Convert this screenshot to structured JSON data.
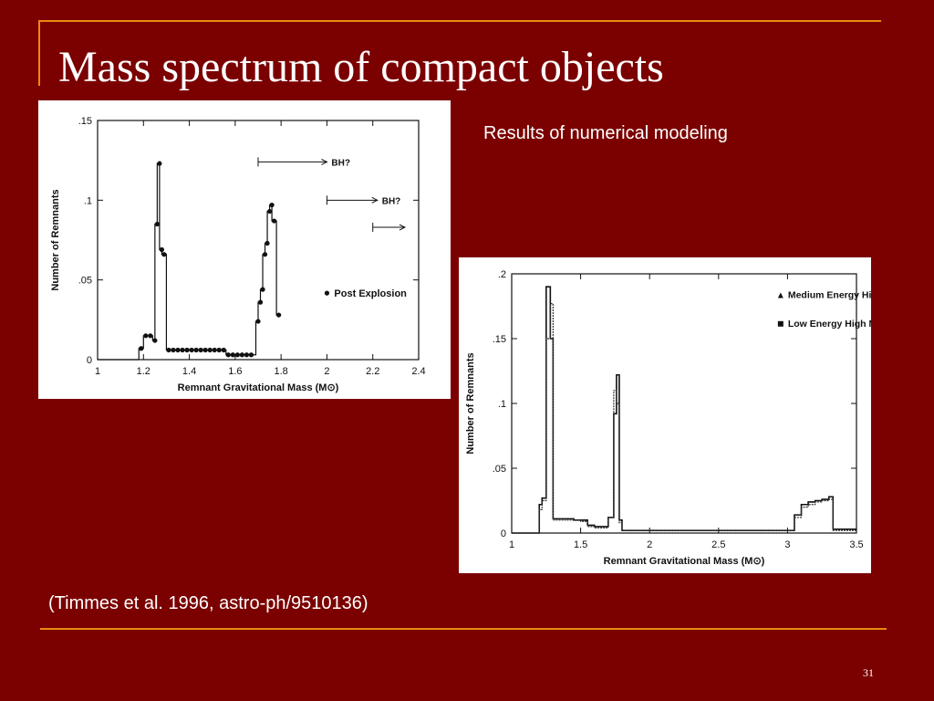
{
  "slide": {
    "title": "Mass spectrum of compact objects",
    "subtitle": "Results of numerical modeling",
    "citation": "(Timmes et al. 1996, astro-ph/9510136)",
    "page_number": "31",
    "colors": {
      "background": "#7b0000",
      "accent": "#e88a14",
      "text": "#ffffff"
    }
  },
  "chart_data": [
    {
      "type": "line",
      "xlabel": "Remnant Gravitational Mass (M⊙)",
      "ylabel": "Number of Remnants",
      "xlim": [
        1,
        2.4
      ],
      "ylim": [
        0,
        0.15
      ],
      "xticks": [
        1,
        1.2,
        1.4,
        1.6,
        1.8,
        2,
        2.2,
        2.4
      ],
      "xtick_labels": [
        "1",
        "1.2",
        "1.4",
        "1.6",
        "1.8",
        "2",
        "2.2",
        "2.4"
      ],
      "yticks": [
        0,
        0.05,
        0.1,
        0.15
      ],
      "ytick_labels": [
        "0",
        ".05",
        ".1",
        ".15"
      ],
      "legend": [
        "Post Explosion"
      ],
      "annotations": [
        {
          "text": "BH?",
          "x_start": 1.7,
          "x_end": 2.0,
          "y": 0.124
        },
        {
          "text": "BH?",
          "x_start": 2.0,
          "x_end": 2.22,
          "y": 0.1
        },
        {
          "text": "",
          "x_start": 2.2,
          "x_end": 2.34,
          "y": 0.083
        }
      ],
      "series": [
        {
          "name": "Post Explosion",
          "x": [
            1.18,
            1.2,
            1.22,
            1.24,
            1.25,
            1.26,
            1.27,
            1.28,
            1.3,
            1.32,
            1.34,
            1.36,
            1.38,
            1.4,
            1.42,
            1.44,
            1.46,
            1.48,
            1.5,
            1.52,
            1.54,
            1.56,
            1.58,
            1.6,
            1.62,
            1.64,
            1.66,
            1.69,
            1.7,
            1.71,
            1.72,
            1.73,
            1.74,
            1.75,
            1.76,
            1.78
          ],
          "y": [
            0.007,
            0.015,
            0.015,
            0.012,
            0.085,
            0.123,
            0.069,
            0.066,
            0.006,
            0.006,
            0.006,
            0.006,
            0.006,
            0.006,
            0.006,
            0.006,
            0.006,
            0.006,
            0.006,
            0.006,
            0.006,
            0.003,
            0.003,
            0.003,
            0.003,
            0.003,
            0.003,
            0.024,
            0.036,
            0.044,
            0.066,
            0.073,
            0.093,
            0.097,
            0.087,
            0.028
          ]
        }
      ]
    },
    {
      "type": "line",
      "xlabel": "Remnant Gravitational Mass (M⊙)",
      "ylabel": "Number of Remnants",
      "xlim": [
        1,
        3.5
      ],
      "ylim": [
        0,
        0.2
      ],
      "xticks": [
        1,
        1.5,
        2,
        2.5,
        3,
        3.5
      ],
      "xtick_labels": [
        "1",
        "1.5",
        "2",
        "2.5",
        "3",
        "3.5"
      ],
      "yticks": [
        0,
        0.05,
        0.1,
        0.15,
        0.2
      ],
      "ytick_labels": [
        "0",
        ".05",
        ".1",
        ".15",
        ".2"
      ],
      "legend": [
        "Medium Energy High Mass Models",
        "Low Energy High Mass Models"
      ],
      "series": [
        {
          "name": "Medium Energy High Mass Models",
          "x": [
            1.0,
            1.16,
            1.2,
            1.22,
            1.25,
            1.28,
            1.3,
            1.35,
            1.4,
            1.45,
            1.5,
            1.55,
            1.6,
            1.65,
            1.7,
            1.74,
            1.76,
            1.78,
            1.8,
            2.0,
            2.5,
            3.0,
            3.05,
            3.1,
            3.15,
            3.2,
            3.25,
            3.3,
            3.33,
            3.5
          ],
          "y": [
            0.0,
            0.0,
            0.022,
            0.027,
            0.19,
            0.15,
            0.011,
            0.011,
            0.011,
            0.01,
            0.01,
            0.006,
            0.005,
            0.005,
            0.012,
            0.092,
            0.122,
            0.01,
            0.002,
            0.002,
            0.002,
            0.002,
            0.014,
            0.022,
            0.024,
            0.025,
            0.026,
            0.028,
            0.003,
            0.003
          ]
        },
        {
          "name": "Low Energy High Mass Models",
          "x": [
            1.0,
            1.16,
            1.2,
            1.22,
            1.25,
            1.28,
            1.3,
            1.35,
            1.4,
            1.45,
            1.5,
            1.55,
            1.6,
            1.65,
            1.7,
            1.74,
            1.76,
            1.78,
            1.8,
            2.0,
            2.5,
            3.0,
            3.05,
            3.1,
            3.15,
            3.2,
            3.25,
            3.3,
            3.33,
            3.5
          ],
          "y": [
            0.0,
            0.0,
            0.018,
            0.025,
            0.15,
            0.177,
            0.01,
            0.01,
            0.01,
            0.01,
            0.009,
            0.005,
            0.004,
            0.004,
            0.012,
            0.11,
            0.1,
            0.008,
            0.002,
            0.002,
            0.002,
            0.002,
            0.012,
            0.02,
            0.022,
            0.024,
            0.025,
            0.026,
            0.002,
            0.002
          ]
        }
      ]
    }
  ]
}
